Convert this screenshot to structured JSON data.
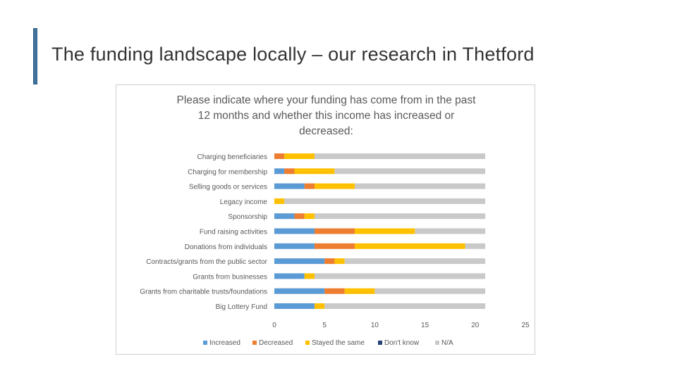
{
  "slide": {
    "title": "The funding landscape locally – our research in Thetford",
    "accent_color": "#41719c"
  },
  "chart_data": {
    "type": "bar",
    "orientation": "horizontal",
    "stacked": true,
    "title_lines": [
      "Please indicate where your funding has come from in the past",
      "12 months and whether this income has increased or",
      "decreased:"
    ],
    "categories": [
      "Charging beneficiaries",
      "Charging for membership",
      "Selling goods or services",
      "Legacy income",
      "Sponsorship",
      "Fund raising activities",
      "Donations from individuals",
      "Contracts/grants from the public sector",
      "Grants from businesses",
      "Grants from charitable trusts/foundations",
      "Big Lottery Fund"
    ],
    "series": [
      {
        "name": "Increased",
        "color": "#5b9bd5",
        "values": [
          0,
          1,
          3,
          0,
          2,
          4,
          4,
          5,
          3,
          5,
          4
        ]
      },
      {
        "name": "Decreased",
        "color": "#ed7d31",
        "values": [
          1,
          1,
          1,
          0,
          1,
          4,
          4,
          1,
          0,
          2,
          0
        ]
      },
      {
        "name": "Stayed the same",
        "color": "#ffc000",
        "values": [
          3,
          4,
          4,
          1,
          1,
          6,
          11,
          1,
          1,
          3,
          1
        ]
      },
      {
        "name": "Don't know",
        "color": "#264478",
        "values": [
          0,
          0,
          0,
          0,
          0,
          0,
          0,
          0,
          0,
          0,
          0
        ]
      },
      {
        "name": "N/A",
        "color": "#c9c9c9",
        "values": [
          17,
          15,
          13,
          20,
          17,
          7,
          2,
          14,
          17,
          11,
          16
        ]
      }
    ],
    "xlim": [
      0,
      25
    ],
    "xticks": [
      "0",
      "5",
      "10",
      "15",
      "20",
      "25"
    ],
    "xlabel": "",
    "ylabel": "",
    "legend_position": "bottom",
    "grid": false
  }
}
